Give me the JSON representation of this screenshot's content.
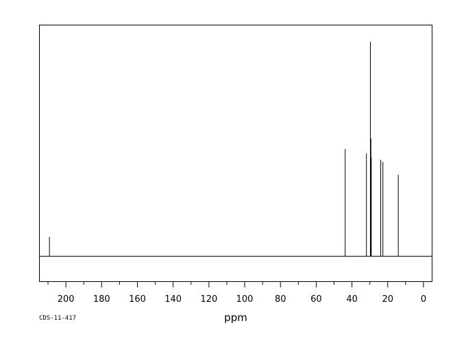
{
  "chart_data": {
    "type": "line",
    "title": "",
    "xlabel": "ppm",
    "ylabel": "",
    "x_reversed": true,
    "xlim": [
      215,
      -5
    ],
    "ylim": [
      -1.2,
      10.8
    ],
    "major_ticks": [
      200,
      180,
      160,
      140,
      120,
      100,
      80,
      60,
      40,
      20,
      0
    ],
    "minor_ticks": [
      210,
      190,
      170,
      150,
      130,
      110,
      90,
      70,
      50,
      30,
      10
    ],
    "tick_labels": [
      "200",
      "180",
      "160",
      "140",
      "120",
      "100",
      "80",
      "60",
      "40",
      "20",
      "0"
    ],
    "baseline": 0,
    "grid": false,
    "series": [
      {
        "peaks": [
          {
            "ppm": 209.2,
            "intensity": 0.9
          },
          {
            "ppm": 43.8,
            "intensity": 5.0
          },
          {
            "ppm": 31.9,
            "intensity": 4.8
          },
          {
            "ppm": 29.7,
            "intensity": 10.0
          },
          {
            "ppm": 29.4,
            "intensity": 5.5
          },
          {
            "ppm": 29.2,
            "intensity": 4.6
          },
          {
            "ppm": 23.9,
            "intensity": 4.5
          },
          {
            "ppm": 22.7,
            "intensity": 4.4
          },
          {
            "ppm": 14.1,
            "intensity": 3.8
          }
        ]
      }
    ],
    "footer_code": "CDS-11-417"
  }
}
